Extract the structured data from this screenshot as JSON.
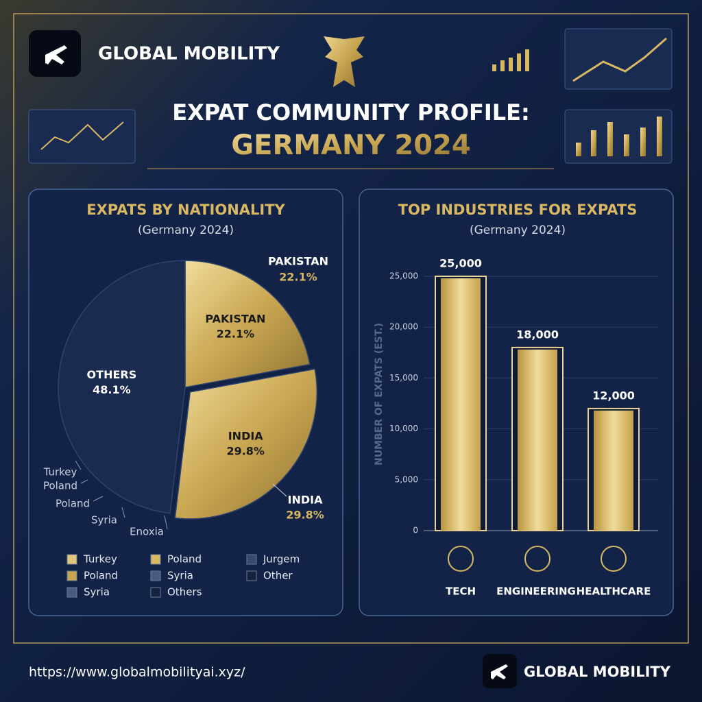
{
  "header": {
    "brand": "GLOBAL MOBILITY",
    "title": "EXPAT COMMUNITY PROFILE:",
    "subtitle": "GERMANY 2024"
  },
  "chart_data": [
    {
      "type": "pie",
      "title": "EXPATS BY NATIONALITY",
      "subtitle": "(Germany 2024)",
      "categories": [
        "PAKISTAN",
        "INDIA",
        "OTHERS"
      ],
      "values": [
        22.1,
        29.8,
        48.1
      ],
      "value_labels": [
        "22.1%",
        "29.8%",
        "48.1%"
      ],
      "colors": [
        "#d8b862",
        "#d2b160",
        "#1b2b50"
      ],
      "annotations": [
        "Turkey",
        "Poland",
        "Poland",
        "Syria",
        "Enoxia"
      ],
      "legend": [
        {
          "label": "Turkey",
          "color": "#e2c77a"
        },
        {
          "label": "Poland",
          "color": "#d8b862"
        },
        {
          "label": "Jurgem",
          "color": "#3a4a6e"
        },
        {
          "label": "Poland",
          "color": "#c9a652"
        },
        {
          "label": "Syria",
          "color": "#4a5a80"
        },
        {
          "label": "Other",
          "color": "#14213f"
        },
        {
          "label": "Syria",
          "color": "#4a5a80"
        },
        {
          "label": "Others",
          "color": "#14213f"
        }
      ]
    },
    {
      "type": "bar",
      "title": "TOP INDUSTRIES FOR EXPATS",
      "subtitle": "(Germany 2024)",
      "ylabel": "NUMBER OF EXPATS (EST.)",
      "categories": [
        "TECH",
        "ENGINEERING",
        "HEALTHCARE"
      ],
      "values": [
        25000,
        18000,
        12000
      ],
      "value_labels": [
        "25,000",
        "18,000",
        "12,000"
      ],
      "color": "#d8b862",
      "ylim": [
        0,
        25000
      ],
      "yticks": [
        0,
        {
          "value": 5000,
          "label": "5,000"
        },
        {
          "value": 10000,
          "label": "10,000"
        },
        {
          "value": 15000,
          "label": "15,000"
        },
        {
          "value": 20000,
          "label": "20,000"
        },
        {
          "value": 25000,
          "label": "25,000"
        }
      ],
      "grid": true
    }
  ],
  "footer": {
    "url": "https://www.globalmobilityai.xyz/",
    "brand": "GLOBAL MOBILITY"
  }
}
